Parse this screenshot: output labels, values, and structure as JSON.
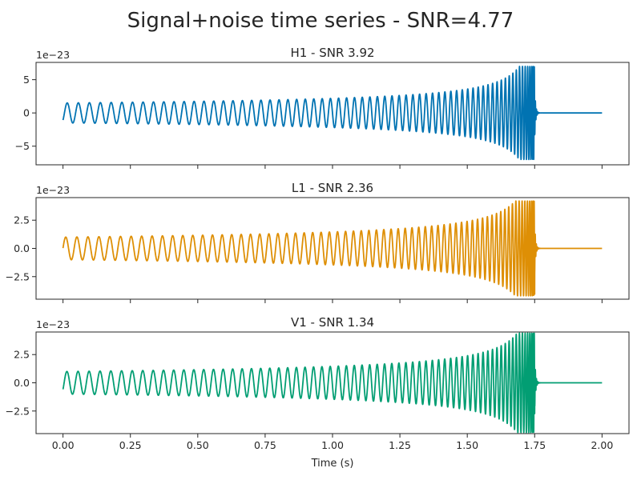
{
  "figure": {
    "title": "Signal+noise time series - SNR=4.77",
    "xlabel": "Time (s)"
  },
  "chart_data": [
    {
      "type": "line",
      "title": "H1 - SNR 3.92",
      "color": "#0173b2",
      "y_offset_text": "1e−23",
      "xlim": [
        -0.1,
        2.1
      ],
      "ylim": [
        -7.8,
        7.6
      ],
      "x_ticks": [
        0.0,
        0.25,
        0.5,
        0.75,
        1.0,
        1.25,
        1.5,
        1.75,
        2.0
      ],
      "x_tick_labels": [
        "0.00",
        "0.25",
        "0.50",
        "0.75",
        "1.00",
        "1.25",
        "1.50",
        "1.75",
        "2.00"
      ],
      "y_ticks": [
        5,
        0,
        -5
      ],
      "y_tick_labels": [
        "5",
        "0",
        "−5"
      ],
      "waveform": {
        "t_start": 0.0,
        "t_merger": 1.75,
        "t_end": 2.0,
        "start_amplitude": 1.5,
        "peak_amplitude": 7.0,
        "start_frequency_hz": 24,
        "start_value": -1.1
      }
    },
    {
      "type": "line",
      "title": "L1 - SNR 2.36",
      "color": "#de8f05",
      "y_offset_text": "1e−23",
      "xlim": [
        -0.1,
        2.1
      ],
      "ylim": [
        -4.5,
        4.5
      ],
      "x_ticks": [
        0.0,
        0.25,
        0.5,
        0.75,
        1.0,
        1.25,
        1.5,
        1.75,
        2.0
      ],
      "x_tick_labels": [
        "0.00",
        "0.25",
        "0.50",
        "0.75",
        "1.00",
        "1.25",
        "1.50",
        "1.75",
        "2.00"
      ],
      "y_ticks": [
        2.5,
        0.0,
        -2.5
      ],
      "y_tick_labels": [
        "2.5",
        "0.0",
        "−2.5"
      ],
      "waveform": {
        "t_start": 0.0,
        "t_merger": 1.75,
        "t_end": 2.0,
        "start_amplitude": 1.0,
        "peak_amplitude": 4.2,
        "start_frequency_hz": 24,
        "start_value": 0.0
      }
    },
    {
      "type": "line",
      "title": "V1 - SNR 1.34",
      "color": "#029e73",
      "y_offset_text": "1e−23",
      "xlim": [
        -0.1,
        2.1
      ],
      "ylim": [
        -4.5,
        4.5
      ],
      "x_ticks": [
        0.0,
        0.25,
        0.5,
        0.75,
        1.0,
        1.25,
        1.5,
        1.75,
        2.0
      ],
      "x_tick_labels": [
        "0.00",
        "0.25",
        "0.50",
        "0.75",
        "1.00",
        "1.25",
        "1.50",
        "1.75",
        "2.00"
      ],
      "y_ticks": [
        2.5,
        0.0,
        -2.5
      ],
      "y_tick_labels": [
        "2.5",
        "0.0",
        "−2.5"
      ],
      "waveform": {
        "t_start": 0.0,
        "t_merger": 1.75,
        "t_end": 2.0,
        "start_amplitude": 1.0,
        "peak_amplitude": 4.4,
        "start_frequency_hz": 24,
        "start_value": -0.6
      }
    }
  ]
}
